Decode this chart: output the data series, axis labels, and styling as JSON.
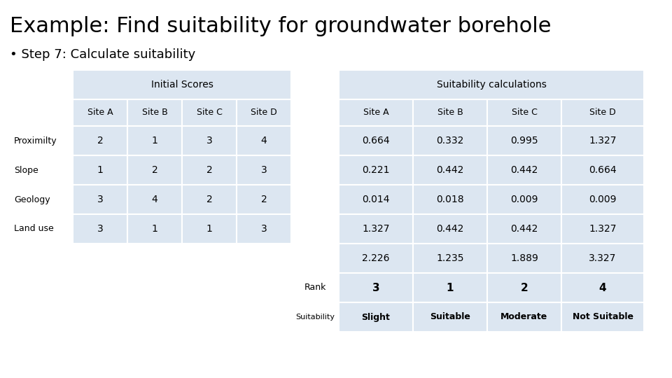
{
  "title": "Example: Find suitability for groundwater borehole",
  "subtitle": "• Step 7: Calculate suitability",
  "background_color": "#ffffff",
  "table_bg_light": "#dce6f1",
  "table_bg_white": "#ffffff",
  "title_fontsize": 22,
  "subtitle_fontsize": 13,
  "rows": [
    "Proximilty",
    "Slope",
    "Geology",
    "Land use"
  ],
  "initial_scores": {
    "header": "Initial Scores",
    "sites": [
      "Site A",
      "Site B",
      "Site C",
      "Site D"
    ],
    "data": [
      [
        2,
        1,
        3,
        4
      ],
      [
        1,
        2,
        2,
        3
      ],
      [
        3,
        4,
        2,
        2
      ],
      [
        3,
        1,
        1,
        3
      ]
    ]
  },
  "suitability_calc": {
    "header": "Suitability calculations",
    "sites": [
      "Site A",
      "Site B",
      "Site C",
      "Site D"
    ],
    "data": [
      [
        "0.664",
        "0.332",
        "0.995",
        "1.327"
      ],
      [
        "0.221",
        "0.442",
        "0.442",
        "0.664"
      ],
      [
        "0.014",
        "0.018",
        "0.009",
        "0.009"
      ],
      [
        "1.327",
        "0.442",
        "0.442",
        "1.327"
      ]
    ],
    "totals": [
      "2.226",
      "1.235",
      "1.889",
      "3.327"
    ],
    "ranks": [
      "3",
      "1",
      "2",
      "4"
    ],
    "suitability": [
      "Slight",
      "Suitable",
      "Moderate",
      "Not Suitable"
    ]
  }
}
